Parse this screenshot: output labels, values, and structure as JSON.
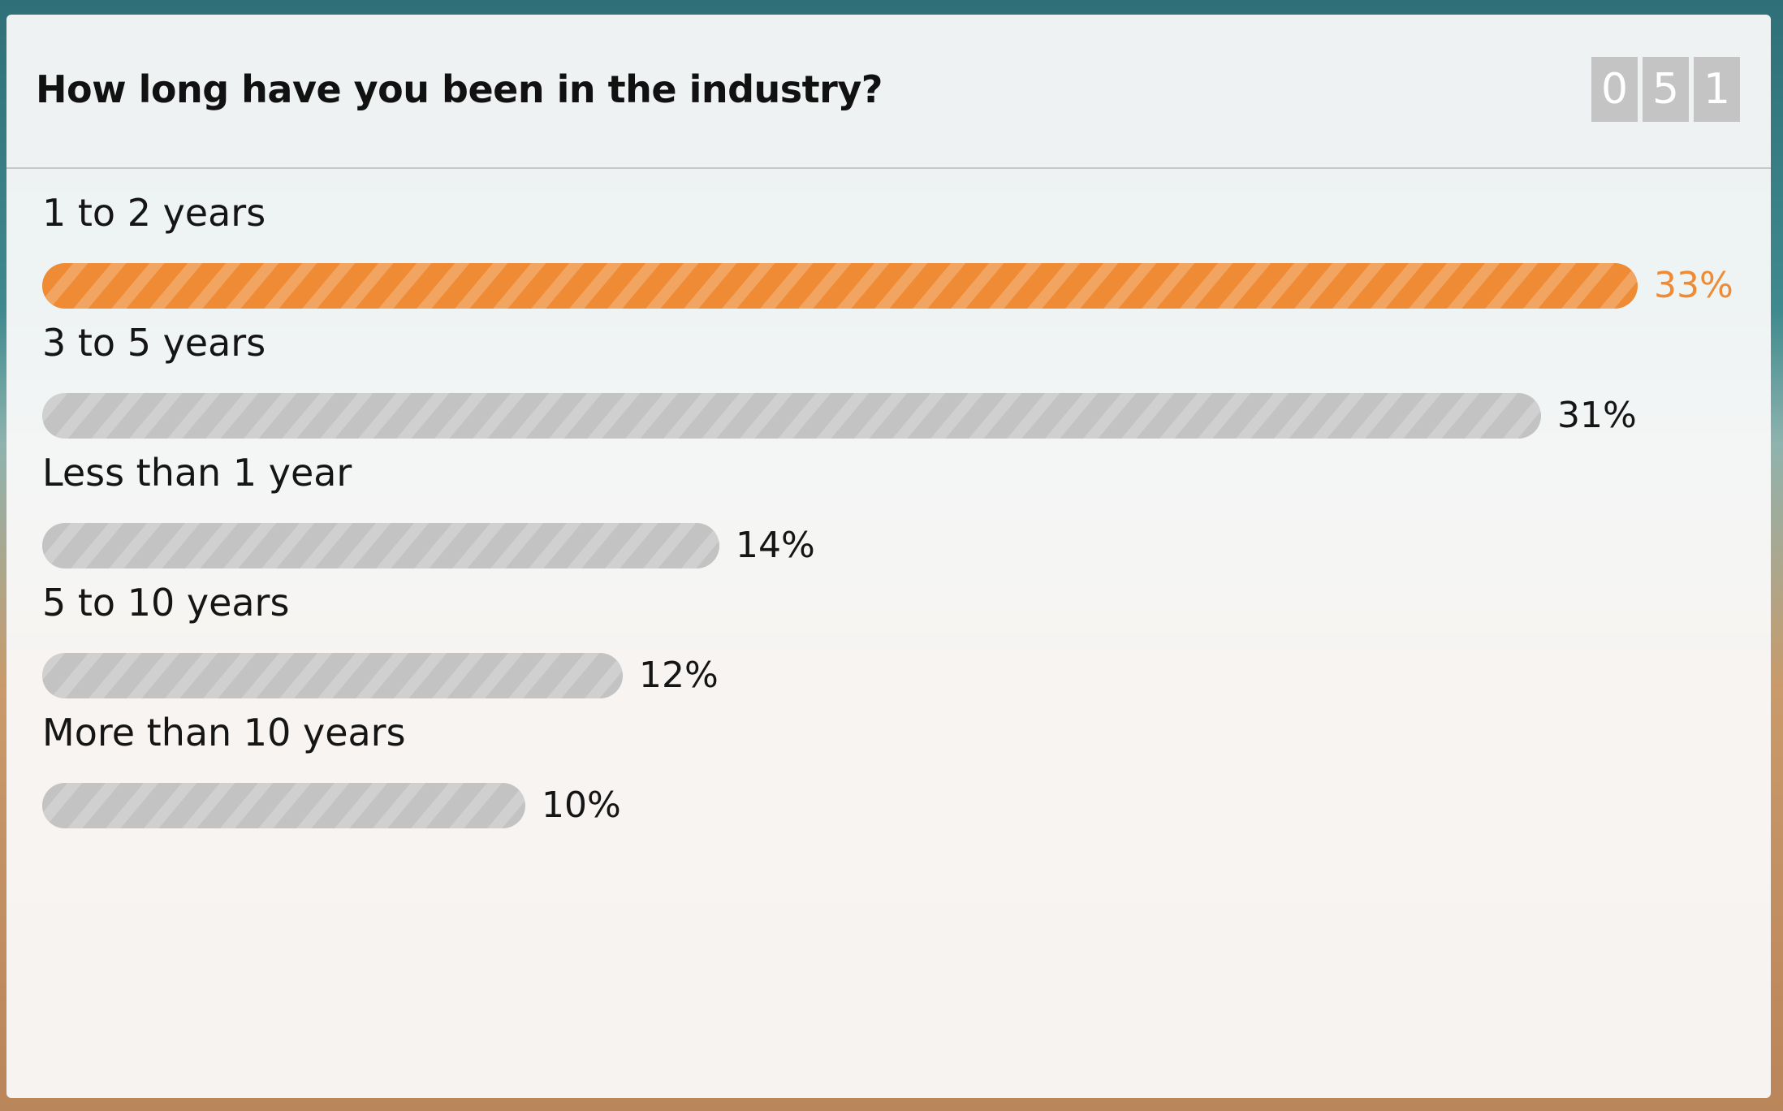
{
  "poll": {
    "question": "How long have you been in the industry?",
    "counter_digits": [
      "0",
      "5",
      "1"
    ],
    "accent_color": "#ef8a35",
    "bar_color": "#c3c3c3"
  },
  "chart_data": {
    "type": "bar",
    "orientation": "horizontal",
    "title": "How long have you been in the industry?",
    "categories": [
      "1 to 2 years",
      "3 to 5 years",
      "Less than 1 year",
      "5 to 10 years",
      "More than 10 years"
    ],
    "values": [
      33,
      31,
      14,
      12,
      10
    ],
    "value_labels": [
      "33%",
      "31%",
      "14%",
      "12%",
      "10%"
    ],
    "highlighted_index": 0,
    "xlabel": "",
    "ylabel": "",
    "xlim": [
      0,
      33
    ],
    "grid": false
  }
}
